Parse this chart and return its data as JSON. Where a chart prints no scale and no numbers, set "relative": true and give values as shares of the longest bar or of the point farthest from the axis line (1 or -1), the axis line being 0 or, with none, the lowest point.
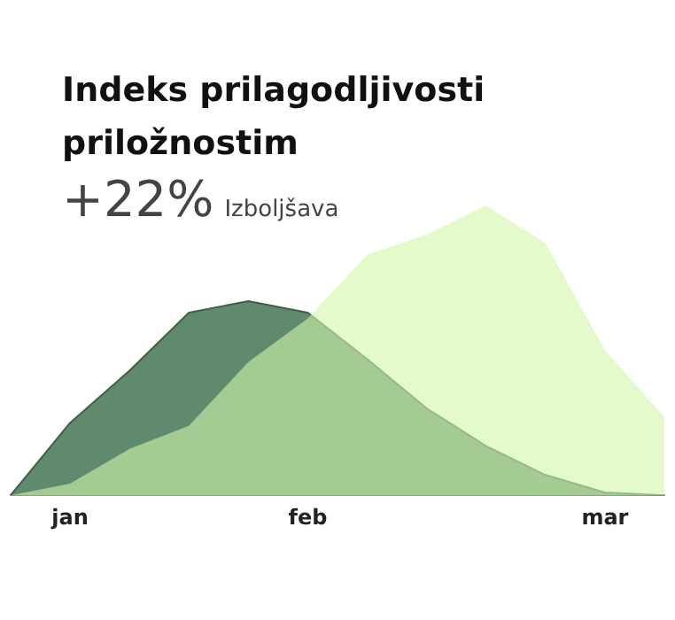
{
  "chart_data": {
    "type": "area",
    "title": "Indeks prilagodljivosti priložnostim",
    "subtitle": "+22% Izboljšava",
    "relative": true,
    "categories": [
      null,
      "jan",
      null,
      null,
      null,
      "feb",
      null,
      null,
      null,
      null,
      "mar",
      null
    ],
    "series": [
      {
        "color": "#5f8a6e",
        "values": [
          0,
          0.25,
          0.43,
          0.63,
          0.67,
          0.63,
          0.47,
          0.3,
          0.17,
          0.07,
          0.01,
          0
        ]
      },
      {
        "color": "#d2f7a8",
        "values": [
          0,
          0.04,
          0.16,
          0.24,
          0.46,
          0.61,
          0.83,
          0.9,
          1,
          0.87,
          0.5,
          0.27
        ]
      }
    ],
    "legend": false,
    "grid": false
  }
}
